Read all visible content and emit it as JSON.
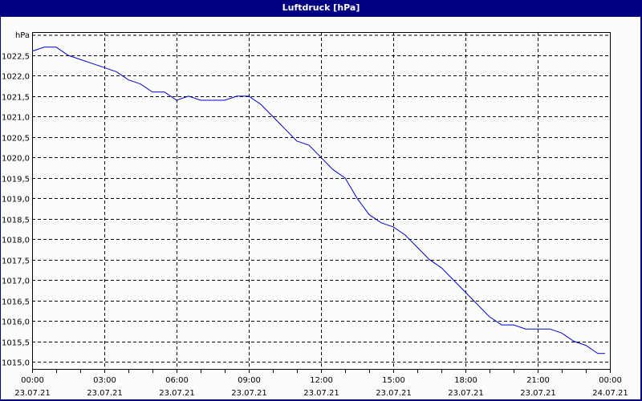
{
  "window": {
    "title": "Luftdruck [hPa]"
  },
  "chart_data": {
    "type": "line",
    "title": "Luftdruck [hPa]",
    "ylabel": "hPa",
    "xlabel": "",
    "ylim": [
      1014.8,
      1023.0
    ],
    "grid": true,
    "legend": false,
    "line_color": "#0000cc",
    "y_ticks": [
      "1022,5",
      "1022,0",
      "1021,5",
      "1021,0",
      "1020,5",
      "1020,0",
      "1019,5",
      "1019,0",
      "1018,5",
      "1018,0",
      "1017,5",
      "1017,0",
      "1016,5",
      "1016,0",
      "1015,5",
      "1015,0"
    ],
    "y_tick_values": [
      1022.5,
      1022.0,
      1021.5,
      1021.0,
      1020.5,
      1020.0,
      1019.5,
      1019.0,
      1018.5,
      1018.0,
      1017.5,
      1017.0,
      1016.5,
      1016.0,
      1015.5,
      1015.0
    ],
    "x_ticks": [
      {
        "time": "00:00",
        "date": "23.07.21"
      },
      {
        "time": "03:00",
        "date": "23.07.21"
      },
      {
        "time": "06:00",
        "date": "23.07.21"
      },
      {
        "time": "09:00",
        "date": "23.07.21"
      },
      {
        "time": "12:00",
        "date": "23.07.21"
      },
      {
        "time": "15:00",
        "date": "23.07.21"
      },
      {
        "time": "18:00",
        "date": "23.07.21"
      },
      {
        "time": "21:00",
        "date": "23.07.21"
      },
      {
        "time": "00:00",
        "date": "24.07.21"
      }
    ],
    "x_hours": [
      0,
      0.5,
      1,
      1.5,
      2,
      2.5,
      3,
      3.5,
      4,
      4.5,
      5,
      5.5,
      6,
      6.5,
      7,
      7.5,
      8,
      8.5,
      9,
      9.5,
      10,
      10.5,
      11,
      11.5,
      12,
      12.5,
      13,
      13.5,
      14,
      14.5,
      15,
      15.5,
      16,
      16.5,
      17,
      17.5,
      18,
      18.5,
      19,
      19.5,
      20,
      20.5,
      21,
      21.5,
      22,
      22.5,
      23,
      23.5,
      23.8
    ],
    "values": [
      1022.6,
      1022.7,
      1022.7,
      1022.5,
      1022.4,
      1022.3,
      1022.2,
      1022.1,
      1021.9,
      1021.8,
      1021.6,
      1021.6,
      1021.4,
      1021.5,
      1021.4,
      1021.4,
      1021.4,
      1021.5,
      1021.5,
      1021.3,
      1021.0,
      1020.7,
      1020.4,
      1020.3,
      1020.0,
      1019.7,
      1019.5,
      1019.0,
      1018.6,
      1018.4,
      1018.3,
      1018.1,
      1017.8,
      1017.5,
      1017.3,
      1017.0,
      1016.7,
      1016.4,
      1016.1,
      1015.9,
      1015.9,
      1015.8,
      1015.8,
      1015.8,
      1015.7,
      1015.5,
      1015.4,
      1015.2,
      1015.2
    ]
  }
}
